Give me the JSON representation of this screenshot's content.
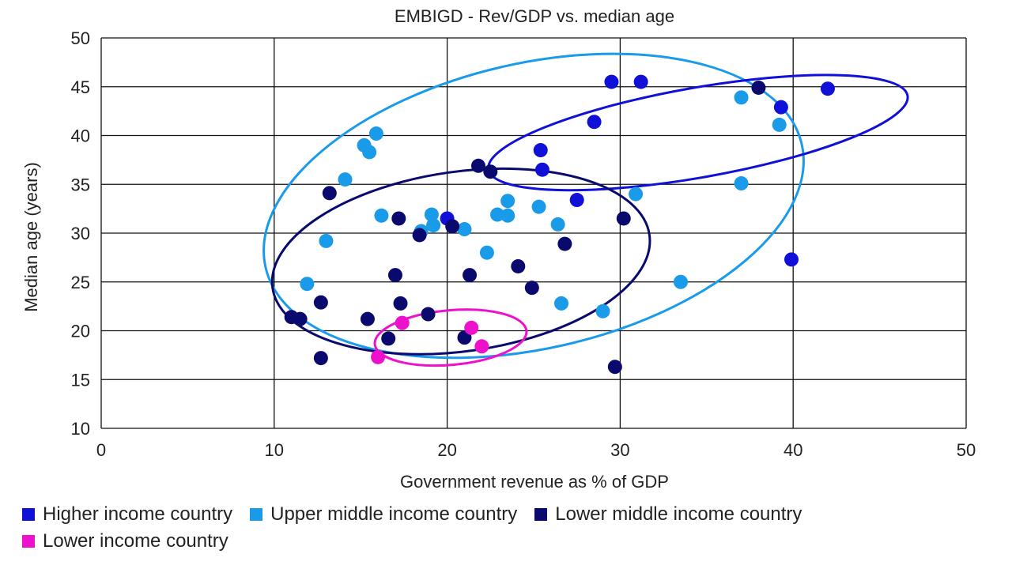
{
  "chart_data": {
    "type": "scatter",
    "title": "EMBIGD - Rev/GDP vs. median age",
    "xlabel": "Government revenue as % of GDP",
    "ylabel": "Median age (years)",
    "xlim": [
      0,
      50
    ],
    "ylim": [
      10,
      50
    ],
    "xticks": [
      0,
      10,
      20,
      30,
      40,
      50
    ],
    "yticks": [
      10,
      15,
      20,
      25,
      30,
      35,
      40,
      45,
      50
    ],
    "grid": true,
    "series": [
      {
        "name": "Higher income country",
        "color": "#1010d8",
        "points": [
          [
            29.5,
            45.5
          ],
          [
            31.2,
            45.5
          ],
          [
            28.5,
            41.4
          ],
          [
            25.4,
            38.5
          ],
          [
            25.5,
            36.5
          ],
          [
            27.5,
            33.4
          ],
          [
            39.3,
            42.9
          ],
          [
            42.0,
            44.8
          ],
          [
            39.9,
            27.3
          ],
          [
            20.0,
            31.5
          ]
        ]
      },
      {
        "name": "Upper middle income country",
        "color": "#1a9bea",
        "points": [
          [
            15.9,
            40.2
          ],
          [
            15.2,
            39.0
          ],
          [
            15.5,
            38.3
          ],
          [
            14.1,
            35.5
          ],
          [
            13.0,
            29.2
          ],
          [
            11.9,
            24.8
          ],
          [
            16.2,
            31.8
          ],
          [
            18.5,
            30.2
          ],
          [
            19.1,
            31.9
          ],
          [
            19.2,
            30.8
          ],
          [
            21.0,
            30.4
          ],
          [
            22.3,
            28.0
          ],
          [
            22.9,
            31.9
          ],
          [
            23.5,
            33.3
          ],
          [
            23.5,
            31.8
          ],
          [
            25.3,
            32.7
          ],
          [
            26.4,
            30.9
          ],
          [
            26.6,
            22.8
          ],
          [
            29.0,
            22.0
          ],
          [
            30.9,
            34.0
          ],
          [
            33.5,
            25.0
          ],
          [
            37.0,
            43.9
          ],
          [
            37.0,
            35.1
          ],
          [
            39.2,
            41.1
          ]
        ]
      },
      {
        "name": "Lower middle income country",
        "color": "#0a0a6e",
        "points": [
          [
            13.2,
            34.1
          ],
          [
            11.0,
            21.4
          ],
          [
            11.5,
            21.2
          ],
          [
            12.7,
            22.9
          ],
          [
            12.7,
            17.2
          ],
          [
            15.4,
            21.2
          ],
          [
            16.6,
            19.2
          ],
          [
            17.0,
            25.7
          ],
          [
            17.2,
            31.5
          ],
          [
            17.3,
            22.8
          ],
          [
            18.4,
            29.8
          ],
          [
            18.9,
            21.7
          ],
          [
            20.3,
            30.7
          ],
          [
            21.0,
            19.3
          ],
          [
            21.3,
            25.7
          ],
          [
            21.8,
            36.9
          ],
          [
            22.5,
            36.3
          ],
          [
            24.1,
            26.6
          ],
          [
            24.9,
            24.4
          ],
          [
            26.8,
            28.9
          ],
          [
            29.7,
            16.3
          ],
          [
            30.2,
            31.5
          ],
          [
            38.0,
            44.9
          ]
        ]
      },
      {
        "name": "Lower income country",
        "color": "#ee11cc",
        "points": [
          [
            16.0,
            17.3
          ],
          [
            17.4,
            20.8
          ],
          [
            21.4,
            20.3
          ],
          [
            22.0,
            18.4
          ]
        ]
      }
    ],
    "ellipses": [
      {
        "group": "Upper middle income country",
        "color": "#1a9bea",
        "center": [
          25.0,
          32.8
        ],
        "semi_axes": [
          15.9,
          14.6
        ],
        "rotation_deg": -13
      },
      {
        "group": "Higher income country",
        "color": "#1010d8",
        "center": [
          34.5,
          40.3
        ],
        "semi_axes": [
          12.3,
          4.6
        ],
        "rotation_deg": -10
      },
      {
        "group": "Lower middle income country",
        "color": "#0a0a6e",
        "center": [
          20.8,
          27.1
        ],
        "semi_axes": [
          11.0,
          9.2
        ],
        "rotation_deg": -8
      },
      {
        "group": "Lower income country",
        "color": "#ee11cc",
        "center": [
          20.2,
          19.3
        ],
        "semi_axes": [
          4.4,
          2.8
        ],
        "rotation_deg": -5
      }
    ]
  },
  "legend": {
    "items": [
      {
        "label": "Higher income country",
        "color": "#1010d8"
      },
      {
        "label": "Upper middle income country",
        "color": "#1a9bea"
      },
      {
        "label": "Lower middle income country",
        "color": "#0a0a6e"
      },
      {
        "label": "Lower income country",
        "color": "#ee11cc"
      }
    ]
  }
}
